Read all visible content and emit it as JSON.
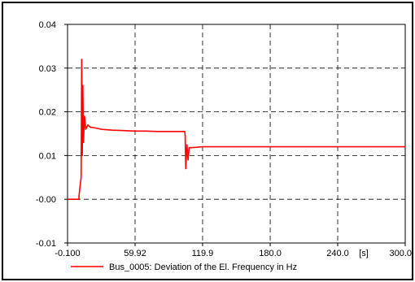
{
  "chart_data": {
    "type": "line",
    "title": "",
    "xlabel": "",
    "ylabel": "",
    "x_unit": "[s]",
    "xlim": [
      -0.1,
      300.0
    ],
    "ylim": [
      -0.01,
      0.04
    ],
    "x_ticks": [
      -0.1,
      59.92,
      119.9,
      180.0,
      240.0,
      300.0
    ],
    "x_tick_labels": [
      "-0.100",
      "59.92",
      "119.9",
      "180.0",
      "240.0",
      "300.0"
    ],
    "y_ticks": [
      -0.01,
      0.0,
      0.01,
      0.02,
      0.03,
      0.04
    ],
    "y_tick_labels": [
      "-0.01",
      "-0.00",
      "0.01",
      "0.02",
      "0.03",
      "0.04"
    ],
    "grid": true,
    "legend_position": "bottom",
    "series": [
      {
        "name": "Bus_0005: Deviation of the El. Frequency in Hz",
        "color": "#ff0000",
        "x": [
          -0.1,
          10.0,
          10.1,
          12.0,
          12.5,
          13.0,
          13.5,
          14.0,
          15.0,
          16.0,
          18.0,
          20.0,
          25.0,
          30.0,
          40.0,
          50.0,
          60.0,
          70.0,
          80.0,
          90.0,
          100.0,
          104.0,
          104.5,
          105.0,
          106.0,
          107.0,
          108.0,
          110.0,
          115.0,
          120.0,
          140.0,
          180.0,
          240.0,
          300.0
        ],
        "y": [
          0.0,
          0.0,
          0.0008,
          0.005,
          0.032,
          0.01,
          0.026,
          0.013,
          0.019,
          0.016,
          0.017,
          0.0165,
          0.0163,
          0.016,
          0.0158,
          0.0157,
          0.0156,
          0.0156,
          0.0155,
          0.0155,
          0.0155,
          0.0155,
          0.0145,
          0.007,
          0.0125,
          0.009,
          0.0118,
          0.0118,
          0.0119,
          0.012,
          0.012,
          0.012,
          0.012,
          0.012
        ]
      }
    ]
  }
}
